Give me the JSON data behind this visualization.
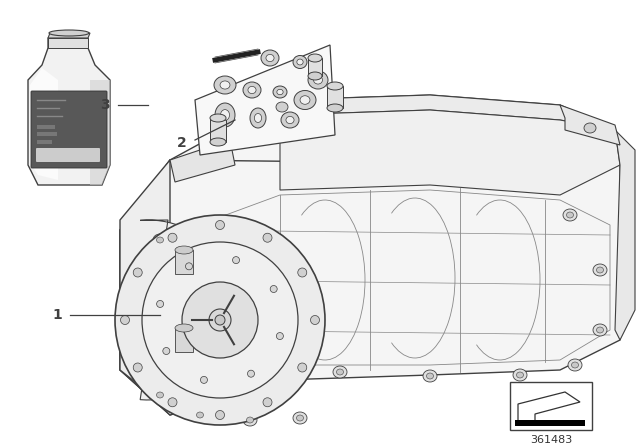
{
  "background_color": "#ffffff",
  "part_number": "361483",
  "line_color": "#404040",
  "thin_line": "#555555",
  "mid_gray": "#888888",
  "light_gray": "#cccccc",
  "very_light_gray": "#f0f0f0",
  "bottle_body_color": "#e8e8e8",
  "bottle_label_color": "#555555",
  "callout_fontsize": 10,
  "partnum_fontsize": 8
}
